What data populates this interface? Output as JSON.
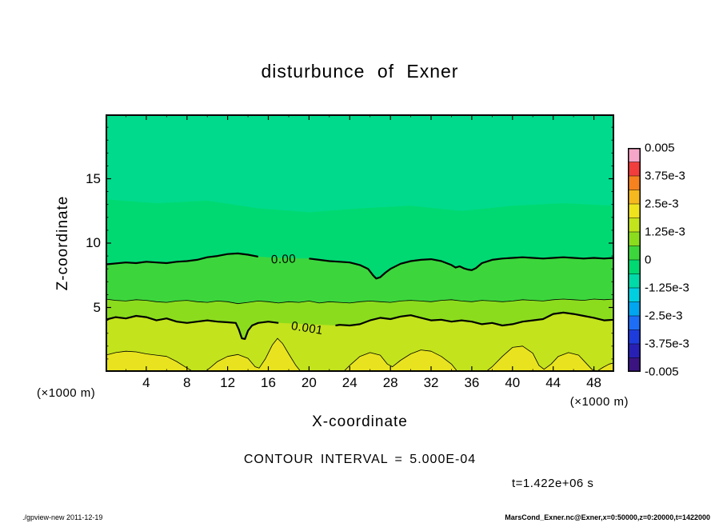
{
  "footer": {
    "left": "./gpview-new  2011-12-19",
    "right": "MarsCond_Exner.nc@Exner,x=0:50000,z=0:20000,t=1422000"
  },
  "chart_data": {
    "type": "heatmap",
    "title": "disturbunce of Exner",
    "xlabel": "X-coordinate",
    "ylabel": "Z-coordinate",
    "x_axis_unit": "(×1000 m)",
    "y_axis_unit": "(×1000 m)",
    "xlim": [
      0,
      50
    ],
    "ylim": [
      0,
      20
    ],
    "x_ticks": [
      4,
      8,
      12,
      16,
      20,
      24,
      28,
      32,
      36,
      40,
      44,
      48
    ],
    "y_ticks": [
      5,
      10,
      15
    ],
    "grid": false,
    "contour_interval_label": "CONTOUR INTERVAL = 5.000E-04",
    "time_label": "t=1.422e+06 s",
    "colorbar": {
      "position": "right",
      "value_min": -0.005,
      "value_max": 0.005,
      "tick_labels": [
        "0.005",
        "3.75e-3",
        "2.5e-3",
        "1.25e-3",
        "0",
        "-1.25e-3",
        "-2.5e-3",
        "-3.75e-3",
        "-0.005"
      ],
      "segment_colors_top_to_bottom": [
        "#f6a6c8",
        "#f23d3d",
        "#f5821e",
        "#f5b81e",
        "#efe31e",
        "#c3e31c",
        "#8cdc1e",
        "#3cd63c",
        "#00d972",
        "#00d9a8",
        "#00cfe0",
        "#00a6f0",
        "#1e6ef5",
        "#1e3cdc",
        "#2820b4",
        "#3c1482"
      ]
    },
    "field_bands": [
      {
        "level_label": "",
        "color": "#00da8c",
        "line_width": 0,
        "boundary": null
      },
      {
        "level_label": "",
        "color": "#00d972",
        "line_width": 0,
        "boundary": [
          [
            0,
            13.4
          ],
          [
            5,
            13.1
          ],
          [
            10,
            13.3
          ],
          [
            15,
            12.7
          ],
          [
            20,
            12.4
          ],
          [
            25,
            12.7
          ],
          [
            30,
            12.9
          ],
          [
            35,
            12.5
          ],
          [
            40,
            12.9
          ],
          [
            45,
            13.1
          ],
          [
            50,
            12.9
          ]
        ]
      },
      {
        "level_label": "0.00",
        "color": "#3cd63c",
        "line_width": 2.2,
        "label_x": 17.5,
        "label_z": 8.7,
        "label_rotation": -2,
        "gap": [
          15.1,
          19.9
        ],
        "boundary": [
          [
            0,
            8.35
          ],
          [
            2,
            8.5
          ],
          [
            3,
            8.45
          ],
          [
            4,
            8.55
          ],
          [
            5,
            8.5
          ],
          [
            6,
            8.45
          ],
          [
            7,
            8.55
          ],
          [
            8,
            8.6
          ],
          [
            9,
            8.7
          ],
          [
            10,
            8.9
          ],
          [
            11,
            9.0
          ],
          [
            12,
            9.15
          ],
          [
            13,
            9.2
          ],
          [
            14,
            9.1
          ],
          [
            15,
            8.95
          ],
          [
            16,
            8.9
          ],
          [
            17,
            8.85
          ],
          [
            18,
            8.85
          ],
          [
            19,
            8.8
          ],
          [
            20,
            8.8
          ],
          [
            21,
            8.7
          ],
          [
            22,
            8.6
          ],
          [
            23,
            8.55
          ],
          [
            24,
            8.5
          ],
          [
            25,
            8.3
          ],
          [
            25.8,
            8.0
          ],
          [
            26.3,
            7.5
          ],
          [
            26.6,
            7.25
          ],
          [
            27,
            7.35
          ],
          [
            27.5,
            7.7
          ],
          [
            28,
            8.0
          ],
          [
            29,
            8.4
          ],
          [
            30,
            8.6
          ],
          [
            31,
            8.7
          ],
          [
            32,
            8.75
          ],
          [
            33,
            8.6
          ],
          [
            34,
            8.3
          ],
          [
            34.4,
            8.1
          ],
          [
            34.8,
            8.2
          ],
          [
            35.2,
            8.05
          ],
          [
            35.6,
            7.95
          ],
          [
            36,
            7.9
          ],
          [
            36.4,
            8.05
          ],
          [
            37,
            8.45
          ],
          [
            38,
            8.7
          ],
          [
            39,
            8.8
          ],
          [
            40,
            8.85
          ],
          [
            41,
            8.9
          ],
          [
            42,
            8.85
          ],
          [
            43,
            8.8
          ],
          [
            44,
            8.85
          ],
          [
            45,
            8.9
          ],
          [
            46,
            8.85
          ],
          [
            47,
            8.8
          ],
          [
            48,
            8.85
          ],
          [
            49,
            8.8
          ],
          [
            50,
            8.85
          ]
        ]
      },
      {
        "level_label": "",
        "color": "#8cdc1e",
        "line_width": 0.8,
        "boundary": [
          [
            0,
            5.65
          ],
          [
            1,
            5.55
          ],
          [
            2,
            5.5
          ],
          [
            3,
            5.6
          ],
          [
            4,
            5.55
          ],
          [
            5,
            5.45
          ],
          [
            6,
            5.4
          ],
          [
            7,
            5.5
          ],
          [
            8,
            5.55
          ],
          [
            9,
            5.45
          ],
          [
            10,
            5.4
          ],
          [
            11,
            5.5
          ],
          [
            12,
            5.45
          ],
          [
            13,
            5.3
          ],
          [
            14,
            5.4
          ],
          [
            15,
            5.5
          ],
          [
            16,
            5.45
          ],
          [
            17,
            5.35
          ],
          [
            18,
            5.45
          ],
          [
            19,
            5.4
          ],
          [
            20,
            5.5
          ],
          [
            21,
            5.35
          ],
          [
            22,
            5.45
          ],
          [
            23,
            5.4
          ],
          [
            24,
            5.35
          ],
          [
            25,
            5.45
          ],
          [
            26,
            5.5
          ],
          [
            27,
            5.45
          ],
          [
            28,
            5.4
          ],
          [
            29,
            5.5
          ],
          [
            30,
            5.55
          ],
          [
            31,
            5.5
          ],
          [
            32,
            5.45
          ],
          [
            33,
            5.55
          ],
          [
            34,
            5.6
          ],
          [
            35,
            5.5
          ],
          [
            36,
            5.45
          ],
          [
            37,
            5.55
          ],
          [
            38,
            5.5
          ],
          [
            39,
            5.45
          ],
          [
            40,
            5.5
          ],
          [
            41,
            5.6
          ],
          [
            42,
            5.55
          ],
          [
            43,
            5.5
          ],
          [
            44,
            5.6
          ],
          [
            45,
            5.65
          ],
          [
            46,
            5.6
          ],
          [
            47,
            5.55
          ],
          [
            48,
            5.65
          ],
          [
            49,
            5.6
          ],
          [
            50,
            5.65
          ]
        ]
      },
      {
        "level_label": "0.001",
        "color": "#c3e31c",
        "line_width": 2.2,
        "label_x": 19.8,
        "label_z": 3.35,
        "label_rotation": 9,
        "gap": [
          17.05,
          22.55
        ],
        "boundary": [
          [
            0,
            4.05
          ],
          [
            1,
            4.25
          ],
          [
            2,
            4.15
          ],
          [
            3,
            4.35
          ],
          [
            4,
            4.25
          ],
          [
            5,
            4.0
          ],
          [
            6,
            4.15
          ],
          [
            7,
            3.9
          ],
          [
            8,
            3.8
          ],
          [
            9,
            3.9
          ],
          [
            10,
            4.0
          ],
          [
            11,
            3.9
          ],
          [
            12,
            3.85
          ],
          [
            12.8,
            3.8
          ],
          [
            13.1,
            3.3
          ],
          [
            13.4,
            2.6
          ],
          [
            13.7,
            2.55
          ],
          [
            14,
            3.2
          ],
          [
            14.4,
            3.6
          ],
          [
            15,
            3.8
          ],
          [
            16,
            3.9
          ],
          [
            17,
            3.8
          ],
          [
            22.6,
            3.6
          ],
          [
            23,
            3.65
          ],
          [
            24,
            3.6
          ],
          [
            25,
            3.7
          ],
          [
            26,
            4.0
          ],
          [
            27,
            4.2
          ],
          [
            28,
            4.1
          ],
          [
            29,
            4.3
          ],
          [
            30,
            4.4
          ],
          [
            31,
            4.2
          ],
          [
            32,
            4.0
          ],
          [
            33,
            4.05
          ],
          [
            34,
            3.9
          ],
          [
            35,
            4.0
          ],
          [
            36,
            3.9
          ],
          [
            37,
            3.7
          ],
          [
            38,
            3.8
          ],
          [
            39,
            3.6
          ],
          [
            40,
            3.7
          ],
          [
            41,
            3.9
          ],
          [
            42,
            4.0
          ],
          [
            43,
            4.1
          ],
          [
            44,
            4.5
          ],
          [
            45,
            4.6
          ],
          [
            46,
            4.5
          ],
          [
            47,
            4.35
          ],
          [
            48,
            4.2
          ],
          [
            49,
            4.0
          ],
          [
            50,
            4.05
          ]
        ]
      },
      {
        "level_label": "",
        "color": "#e9e31f",
        "line_width": 0.8,
        "boundary": [
          [
            0,
            1.3
          ],
          [
            1,
            1.5
          ],
          [
            2,
            1.6
          ],
          [
            3,
            1.55
          ],
          [
            4,
            1.4
          ],
          [
            5,
            1.3
          ],
          [
            6,
            1.2
          ],
          [
            7,
            0.8
          ],
          [
            8,
            0.3
          ],
          [
            8.6,
            0.02
          ],
          [
            9.8,
            0.02
          ],
          [
            10.4,
            0.4
          ],
          [
            11,
            0.8
          ],
          [
            12,
            1.2
          ],
          [
            13,
            1.35
          ],
          [
            14,
            1.05
          ],
          [
            14.7,
            0.4
          ],
          [
            15.1,
            0.3
          ],
          [
            15.7,
            1.0
          ],
          [
            16.4,
            2.1
          ],
          [
            16.9,
            2.6
          ],
          [
            17.4,
            2.2
          ],
          [
            18,
            1.4
          ],
          [
            18.7,
            0.5
          ],
          [
            19.2,
            0.02
          ],
          [
            23.4,
            0.02
          ],
          [
            24,
            0.5
          ],
          [
            25,
            1.2
          ],
          [
            26,
            1.5
          ],
          [
            27,
            1.3
          ],
          [
            27.7,
            0.6
          ],
          [
            28.2,
            0.4
          ],
          [
            29,
            0.9
          ],
          [
            30,
            1.4
          ],
          [
            31,
            1.7
          ],
          [
            32,
            1.6
          ],
          [
            33,
            1.2
          ],
          [
            34,
            0.6
          ],
          [
            34.6,
            0.02
          ],
          [
            37.4,
            0.02
          ],
          [
            38,
            0.4
          ],
          [
            39,
            1.2
          ],
          [
            40,
            1.9
          ],
          [
            41,
            2.0
          ],
          [
            42,
            1.45
          ],
          [
            42.6,
            0.5
          ],
          [
            43.1,
            0.2
          ],
          [
            43.8,
            0.6
          ],
          [
            44.5,
            1.2
          ],
          [
            45.5,
            1.5
          ],
          [
            46.5,
            1.3
          ],
          [
            47.2,
            0.7
          ],
          [
            47.8,
            0.2
          ],
          [
            48.3,
            0.05
          ],
          [
            48.9,
            0.35
          ],
          [
            49.5,
            0.6
          ],
          [
            50,
            0.7
          ]
        ]
      }
    ]
  }
}
